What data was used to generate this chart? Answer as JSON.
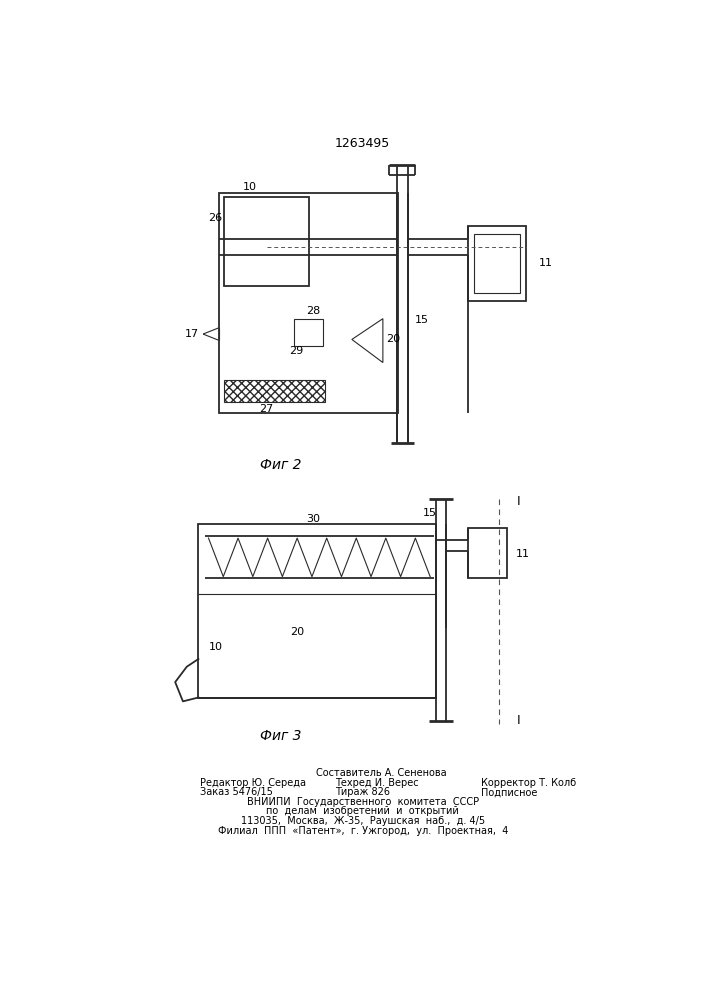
{
  "title": "1263495",
  "fig2_caption": "Фиг 2",
  "fig3_caption": "Фиг 3",
  "bg_color": "#ffffff",
  "line_color": "#2a2a2a",
  "sestavitel": "Составитель А. Сененова",
  "editor": "Редактор Ю. Середа",
  "techred": "Техред И. Верес",
  "korrektor": "Корректор Т. Колб",
  "zakaz": "Заказ 5476/15",
  "tirazh": "Тираж 826",
  "podpisnoe": "Подписное",
  "vniipи_lines": [
    "ВНИИПИ  Государственного  комитета  СССР",
    "по  делам  изобретений  и  открытий",
    "113035,  Москва,  Ж-35,  Раушская  наб.,  д. 4/5",
    "Филиал  ППП  «Патент»,  г. Ужгород,  ул.  Проектная,  4"
  ]
}
